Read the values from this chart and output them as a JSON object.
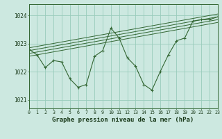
{
  "background_color": "#cce8e0",
  "grid_color": "#99ccbb",
  "line_color": "#336633",
  "xlabel": "Graphe pression niveau de la mer (hPa)",
  "ylabel_ticks": [
    1021,
    1022,
    1023,
    1024
  ],
  "xlim": [
    0,
    23
  ],
  "ylim": [
    1020.7,
    1024.4
  ],
  "hours": [
    0,
    1,
    2,
    3,
    4,
    5,
    6,
    7,
    8,
    9,
    10,
    11,
    12,
    13,
    14,
    15,
    16,
    17,
    18,
    19,
    20,
    21,
    22,
    23
  ],
  "main_line": [
    1022.8,
    1022.6,
    1022.15,
    1022.4,
    1022.35,
    1021.75,
    1021.45,
    1021.55,
    1022.55,
    1022.75,
    1023.55,
    1023.2,
    1022.5,
    1022.2,
    1021.55,
    1021.35,
    1022.0,
    1022.6,
    1023.1,
    1023.2,
    1023.8,
    1023.85,
    1023.85,
    1023.95
  ],
  "trend_lines": [
    {
      "x0": 0,
      "y0": 1022.55,
      "x1": 23,
      "y1": 1023.75
    },
    {
      "x0": 0,
      "y0": 1022.65,
      "x1": 23,
      "y1": 1023.85
    },
    {
      "x0": 0,
      "y0": 1022.75,
      "x1": 23,
      "y1": 1023.95
    },
    {
      "x0": 0,
      "y0": 1022.85,
      "x1": 23,
      "y1": 1024.05
    }
  ]
}
